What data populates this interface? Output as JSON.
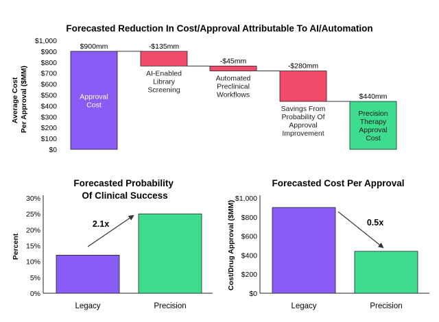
{
  "chart_data": [
    {
      "type": "waterfall",
      "title": "Forecasted Reduction In Cost/Approval Attributable To AI/Automation",
      "ylabel": [
        "Average Cost",
        "Per Approval ($MM)"
      ],
      "ylim": [
        0,
        1000
      ],
      "yticks": [
        "$0",
        "$100",
        "$200",
        "$300",
        "$400",
        "$500",
        "$600",
        "$700",
        "$800",
        "$900",
        "$1,000"
      ],
      "steps": [
        {
          "name": "Approval Cost",
          "value": 900,
          "kind": "total",
          "value_label": "$900mm",
          "desc": [
            "Approval",
            "Cost"
          ],
          "desc_pos": "inside"
        },
        {
          "name": "AI-Enabled Library Screening",
          "value": -135,
          "kind": "delta",
          "value_label": "-$135mm",
          "desc": [
            "AI-Enabled",
            "Library",
            "Screening"
          ],
          "desc_pos": "below"
        },
        {
          "name": "Automated Preclinical Workflows",
          "value": -45,
          "kind": "delta",
          "value_label": "-$45mm",
          "desc": [
            "Automated",
            "Preclinical",
            "Workflows"
          ],
          "desc_pos": "below"
        },
        {
          "name": "Savings From Probability Of Approval Improvement",
          "value": -280,
          "kind": "delta",
          "value_label": "-$280mm",
          "desc": [
            "Savings From",
            "Probability Of",
            "Approval",
            "Improvement"
          ],
          "desc_pos": "below"
        },
        {
          "name": "Precision Therapy Approval Cost",
          "value": 440,
          "kind": "total",
          "value_label": "$440mm",
          "desc": [
            "Precision",
            "Therapy",
            "Approval",
            "Cost"
          ],
          "desc_pos": "inside"
        }
      ]
    },
    {
      "type": "bar",
      "title": [
        "Forecasted Probability",
        "Of Clinical Success"
      ],
      "ylabel": "Percent",
      "categories": [
        "Legacy",
        "Precision"
      ],
      "values": [
        12,
        25
      ],
      "ylim": [
        0,
        30
      ],
      "yticks": [
        "0%",
        "5%",
        "10%",
        "15%",
        "20%",
        "25%",
        "30%"
      ],
      "annotation": "2.1x"
    },
    {
      "type": "bar",
      "title": "Forecasted Cost Per Approval",
      "ylabel": "Cost/Drug Approval ($MM)",
      "categories": [
        "Legacy",
        "Precision"
      ],
      "values": [
        900,
        440
      ],
      "ylim": [
        0,
        1000
      ],
      "yticks": [
        "$0",
        "$200",
        "$400",
        "$600",
        "$800",
        "$1,000"
      ],
      "annotation": "0.5x"
    }
  ],
  "colors": {
    "total": "#8a5cf6",
    "decrease": "#f24a6a",
    "precision": "#3ddc8e",
    "edge": "#222222"
  }
}
